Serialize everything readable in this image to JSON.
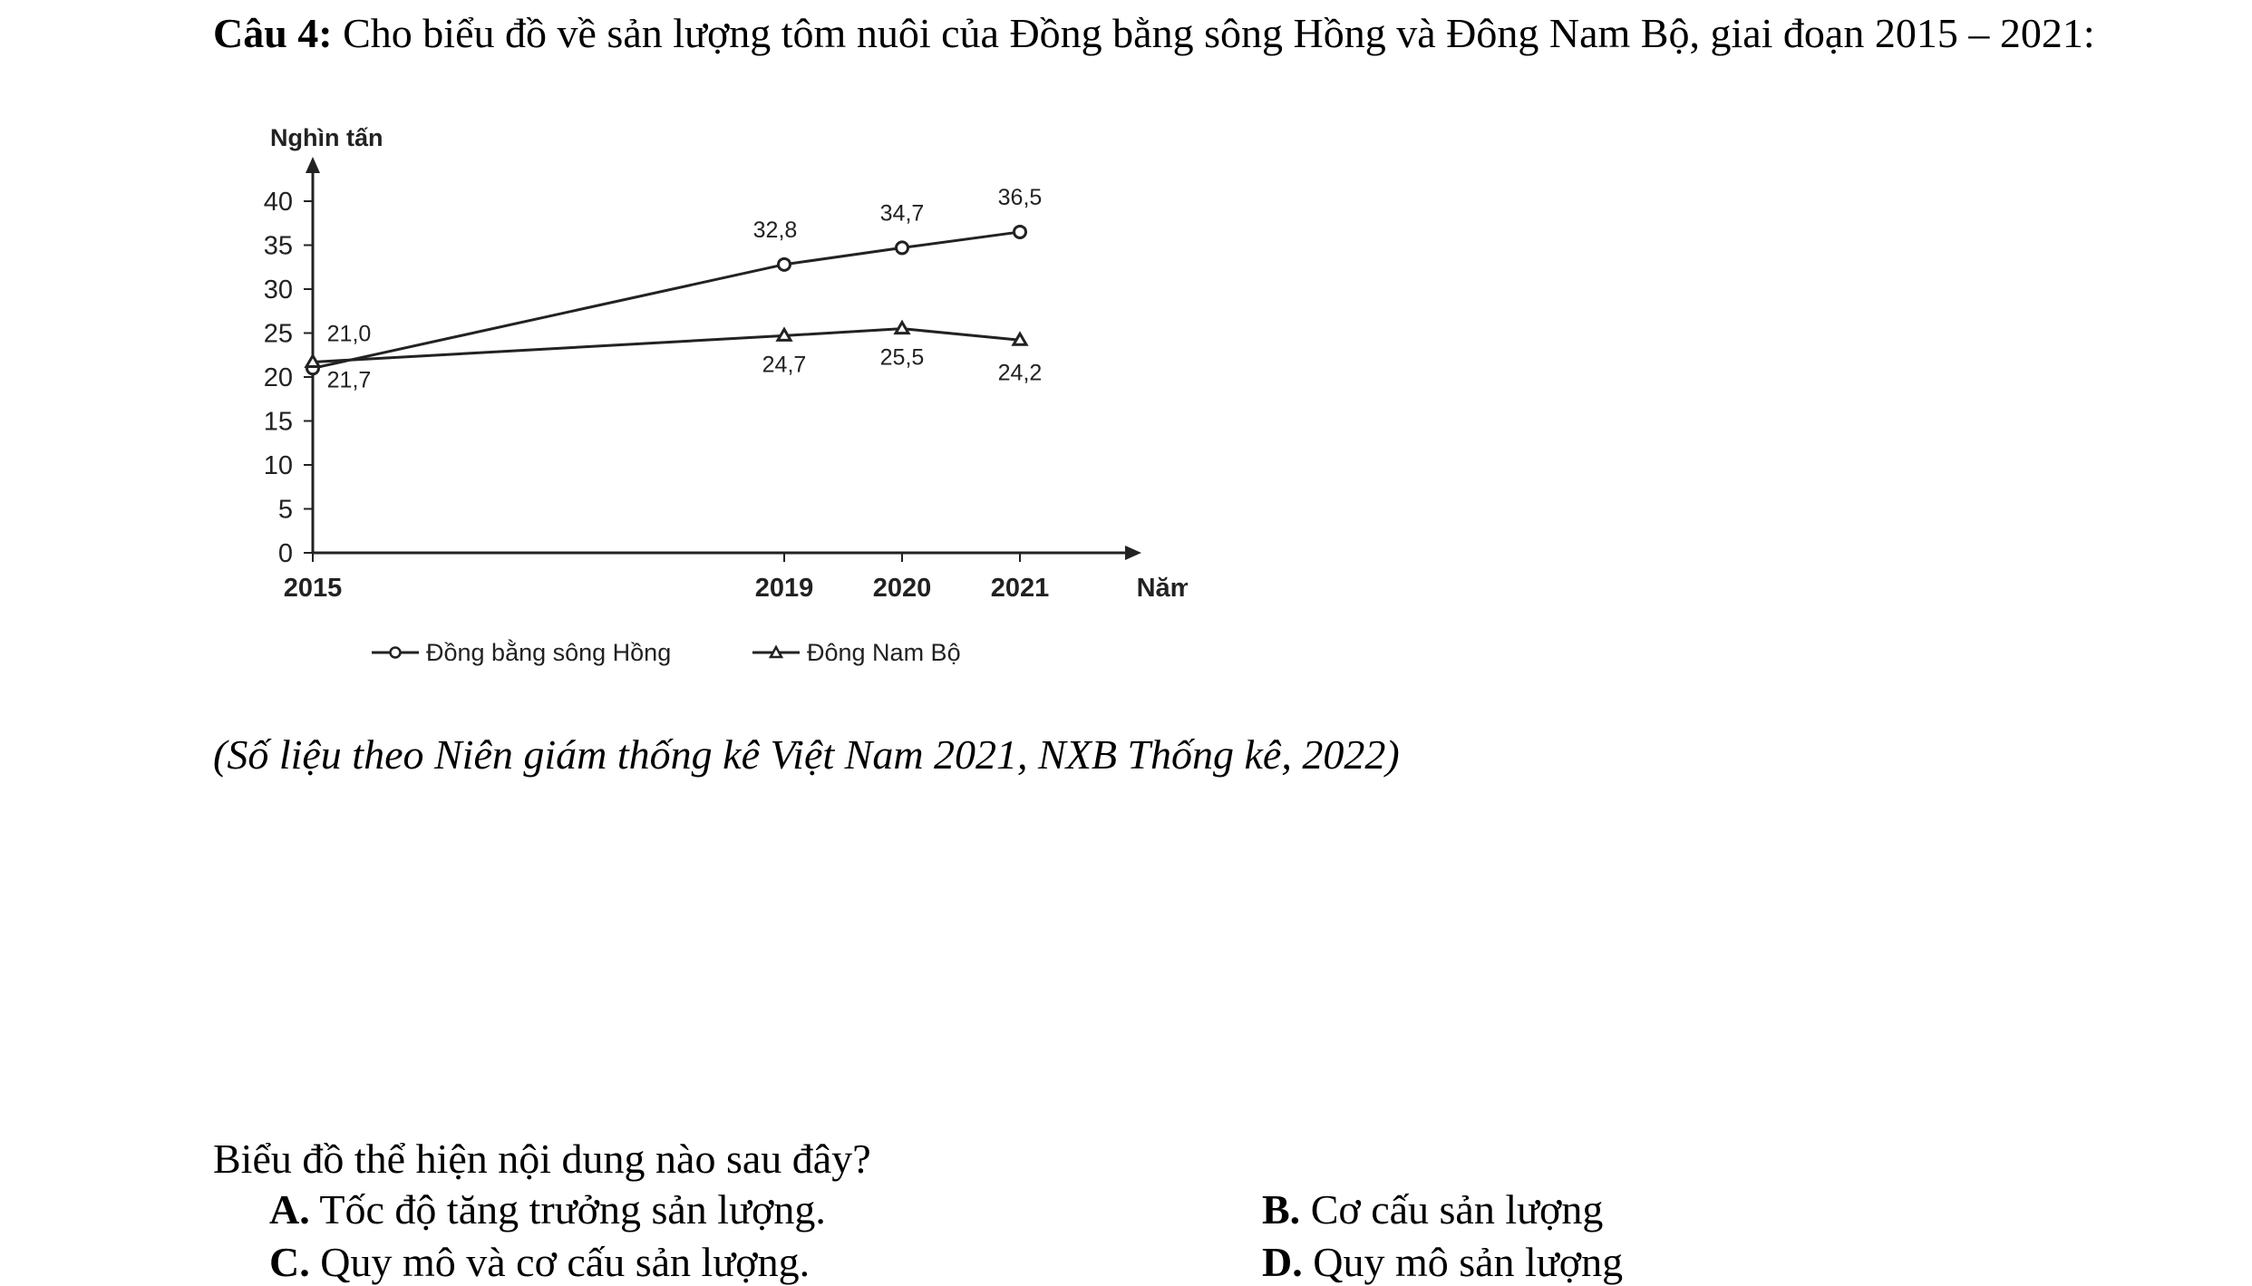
{
  "question": {
    "number": "Câu 4:",
    "text": " Cho biểu đồ về sản lượng tôm nuôi của Đồng bằng sông Hồng và Đông Nam Bộ, giai đoạn 2015 – 2021:"
  },
  "source": "(Số liệu theo Niên giám thống kê Việt Nam 2021, NXB Thống kê, 2022)",
  "prompt": "Biểu đồ thể hiện nội dung nào sau đây?",
  "options": [
    {
      "letter": "A.",
      "text": " Tốc độ tăng trưởng sản lượng."
    },
    {
      "letter": "B.",
      "text": " Cơ cấu sản lượng"
    },
    {
      "letter": "C.",
      "text": " Quy mô và cơ cấu sản lượng."
    },
    {
      "letter": "D.",
      "text": " Quy mô sản lượng"
    }
  ],
  "chart_data": {
    "type": "line",
    "ylabel": "Nghìn tấn",
    "xlabel": "Năm",
    "x": [
      2015,
      2019,
      2020,
      2021
    ],
    "xtick_labels": [
      "2015",
      "2019",
      "2020",
      "2021"
    ],
    "ylim": [
      0,
      40
    ],
    "yticks": [
      0,
      5,
      10,
      15,
      20,
      25,
      30,
      35,
      40
    ],
    "grid": false,
    "legend_position": "bottom",
    "series": [
      {
        "name": "Đồng bằng sông Hồng",
        "marker": "circle",
        "values": [
          21.0,
          32.8,
          34.7,
          36.5
        ],
        "labels": [
          "21,0",
          "32,8",
          "34,7",
          "36,5"
        ]
      },
      {
        "name": "Đông Nam Bộ",
        "marker": "triangle",
        "values": [
          21.7,
          24.7,
          25.5,
          24.2
        ],
        "labels": [
          "21,7",
          "24,7",
          "25,5",
          "24,2"
        ]
      }
    ],
    "line_color": "#222222"
  }
}
